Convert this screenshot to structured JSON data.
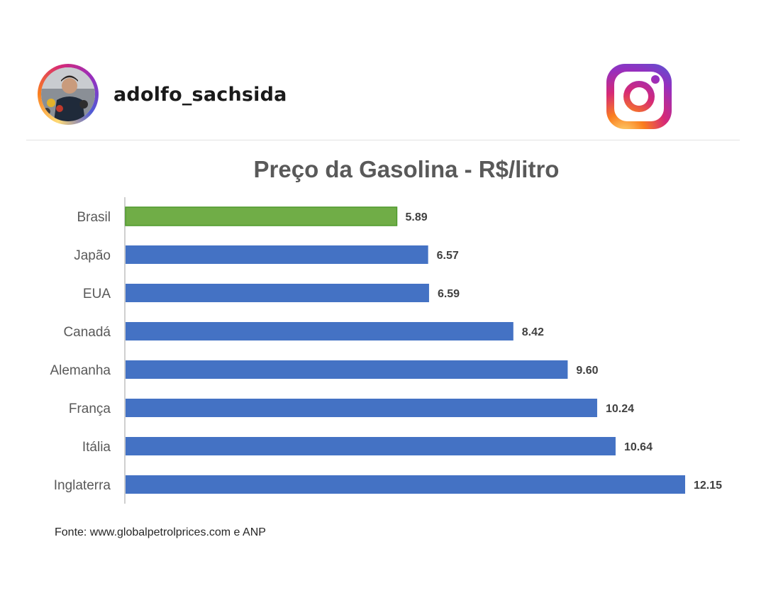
{
  "post": {
    "username": "adolfo_sachsida"
  },
  "icons": {
    "avatar": "profile-photo",
    "brand": "instagram-icon"
  },
  "colors": {
    "highlight_bar": "#70ad47",
    "default_bar": "#4472c4"
  },
  "chart_data": {
    "type": "bar",
    "orientation": "horizontal",
    "title": "Preço da Gasolina - R$/litro",
    "categories": [
      "Brasil",
      "Japão",
      "EUA",
      "Canadá",
      "Alemanha",
      "França",
      "Itália",
      "Inglaterra"
    ],
    "values": [
      5.89,
      6.57,
      6.59,
      8.42,
      9.6,
      10.24,
      10.64,
      12.15
    ],
    "value_labels": [
      "5.89",
      "6.57",
      "6.59",
      "8.42",
      "9.60",
      "10.24",
      "10.64",
      "12.15"
    ],
    "highlight_category": "Brasil",
    "xlim": [
      0,
      12.15
    ],
    "xlabel": "",
    "ylabel": "",
    "grid": false,
    "legend": "none",
    "source": "Fonte: www.globalpetrolprices.com e ANP"
  }
}
